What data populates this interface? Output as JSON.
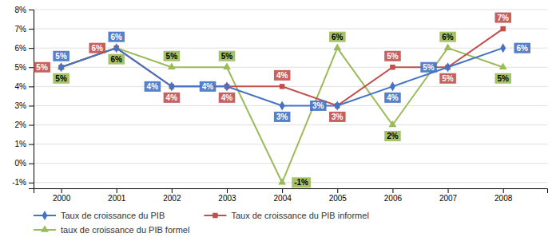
{
  "chart_data": {
    "type": "line",
    "x": [
      2000,
      2001,
      2002,
      2003,
      2004,
      2005,
      2006,
      2007,
      2008
    ],
    "xlim": [
      1999.5,
      2008.8
    ],
    "xticks": [
      2000,
      2001,
      2002,
      2003,
      2004,
      2005,
      2006,
      2007,
      2008
    ],
    "ylim": [
      -1.3,
      8.0
    ],
    "yticks": [
      {
        "value": -1,
        "label": "-1%"
      },
      {
        "value": 0,
        "label": "0%"
      },
      {
        "value": 1,
        "label": "1%"
      },
      {
        "value": 2,
        "label": "2%"
      },
      {
        "value": 3,
        "label": "3%"
      },
      {
        "value": 4,
        "label": "4%"
      },
      {
        "value": 5,
        "label": "5%"
      },
      {
        "value": 6,
        "label": "6%"
      },
      {
        "value": 7,
        "label": "7%"
      },
      {
        "value": 8,
        "label": "8%"
      }
    ],
    "grid": true,
    "legend": "bottom",
    "data_labels": true,
    "series": [
      {
        "name": "Taux de croissance du PIB",
        "color": "#4472C4",
        "marker": "diamond",
        "values": [
          5,
          6,
          4,
          4,
          3,
          3,
          4,
          5,
          6
        ],
        "value_labels": [
          "5%",
          "6%",
          "4%",
          "4%",
          "3%",
          "3%",
          "4%",
          "5%",
          "6%"
        ]
      },
      {
        "name": "Taux de croissance du PIB informel",
        "color": "#C0504D",
        "marker": "square",
        "values": [
          5,
          6,
          4,
          4,
          4,
          3,
          5,
          5,
          7
        ],
        "value_labels": [
          "5%",
          "6%",
          "4%",
          "4%",
          "4%",
          "3%",
          "5%",
          "5%",
          "7%"
        ]
      },
      {
        "name": "taux de croissance du PIB formel",
        "color": "#9BBB59",
        "marker": "triangle",
        "values": [
          5,
          6,
          5,
          5,
          -1,
          6,
          2,
          6,
          5
        ],
        "value_labels": [
          "5%",
          "6%",
          "5%",
          "5%",
          "-1%",
          "6%",
          "2%",
          "6%",
          "5%"
        ]
      }
    ]
  }
}
